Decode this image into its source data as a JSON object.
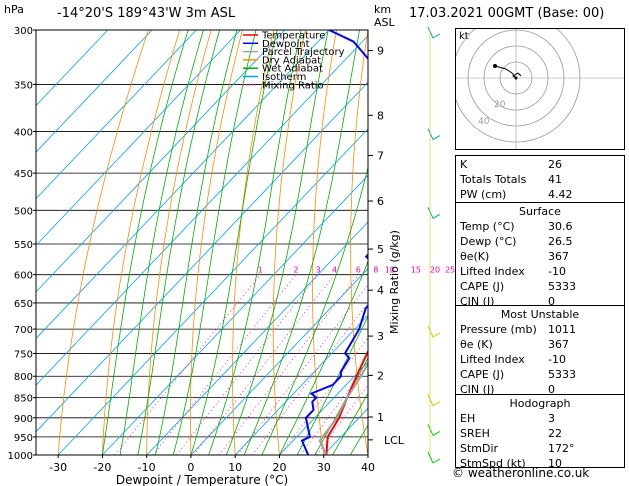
{
  "header": {
    "location": "-14°20'S  189°43'W  3m  ASL",
    "datetime": "17.03.2021  00GMT  (Base: 00)",
    "pressure_unit": "hPa",
    "height_unit_top": "km",
    "height_unit_bottom": "ASL"
  },
  "chart_data": {
    "type": "line",
    "title": "",
    "xlabel": "Dewpoint / Temperature (°C)",
    "ylabel": "",
    "mixing_ratio_axis_label": "Mixing Ratio (g/kg)",
    "xlim": [
      -35,
      40
    ],
    "ylim": [
      1000,
      300
    ],
    "x_ticks": [
      "-30",
      "-20",
      "-10",
      "0",
      "10",
      "20",
      "30",
      "40"
    ],
    "pressure_levels": [
      300,
      350,
      400,
      450,
      500,
      550,
      600,
      650,
      700,
      750,
      800,
      850,
      900,
      950,
      1000
    ],
    "height_ticks": [
      {
        "label": "9",
        "p": 318
      },
      {
        "label": "8",
        "p": 382
      },
      {
        "label": "7",
        "p": 428
      },
      {
        "label": "6",
        "p": 487
      },
      {
        "label": "5",
        "p": 558
      },
      {
        "label": "4",
        "p": 627
      },
      {
        "label": "3",
        "p": 714
      },
      {
        "label": "2",
        "p": 798
      },
      {
        "label": "1",
        "p": 898
      },
      {
        "label": "LCL",
        "p": 958
      }
    ],
    "mixing_ratio_labels": [
      "1",
      "2",
      "3",
      "4",
      "6",
      "8",
      "10",
      "15",
      "20",
      "25"
    ],
    "legend": [
      "Temperature",
      "Dewpoint",
      "Parcel Trajectory",
      "Dry Adiabat",
      "Wet Adiabat",
      "Isotherm",
      "Mixing Ratio"
    ],
    "legend_position": "top-left",
    "colors": {
      "temperature": "#ff0000",
      "dewpoint": "#0000ff",
      "parcel": "#a0a0a0",
      "dry_adiabat": "#ff8c00",
      "wet_adiabat": "#00b000",
      "isotherm": "#00a0ff",
      "mixing_ratio": "#ff00aa"
    },
    "series": [
      {
        "name": "Temperature",
        "points": [
          [
            30.6,
            1000
          ],
          [
            27,
            950
          ],
          [
            25.5,
            900
          ],
          [
            23,
            850
          ],
          [
            20.5,
            800
          ],
          [
            18,
            750
          ],
          [
            15.5,
            700
          ],
          [
            12,
            650
          ],
          [
            8,
            600
          ],
          [
            4,
            550
          ],
          [
            0,
            500
          ],
          [
            -5,
            450
          ],
          [
            -10,
            400
          ],
          [
            -17,
            350
          ],
          [
            -26,
            300
          ]
        ]
      },
      {
        "name": "Dewpoint",
        "points": [
          [
            26.5,
            1000
          ],
          [
            22,
            960
          ],
          [
            23,
            950
          ],
          [
            18,
            900
          ],
          [
            18,
            880
          ],
          [
            16,
            860
          ],
          [
            16,
            850
          ],
          [
            14,
            840
          ],
          [
            17,
            820
          ],
          [
            17,
            800
          ],
          [
            16,
            790
          ],
          [
            15,
            760
          ],
          [
            13,
            750
          ],
          [
            11,
            700
          ],
          [
            8,
            660
          ],
          [
            8,
            640
          ],
          [
            5,
            600
          ],
          [
            -3,
            570
          ],
          [
            -3,
            550
          ],
          [
            -6,
            530
          ],
          [
            -12,
            500
          ],
          [
            -16,
            450
          ],
          [
            -21,
            430
          ],
          [
            -24,
            400
          ],
          [
            -29,
            380
          ],
          [
            -33,
            350
          ],
          [
            -43,
            330
          ],
          [
            -52,
            310
          ],
          [
            -60,
            300
          ]
        ]
      },
      {
        "name": "Parcel Trajectory",
        "points": [
          [
            30.6,
            1000
          ],
          [
            26,
            960
          ],
          [
            25,
            900
          ],
          [
            23,
            850
          ],
          [
            21.5,
            800
          ],
          [
            19.5,
            750
          ],
          [
            17,
            700
          ],
          [
            14.5,
            650
          ],
          [
            11.5,
            600
          ],
          [
            8,
            550
          ],
          [
            4,
            500
          ],
          [
            -1,
            450
          ],
          [
            -6.5,
            400
          ],
          [
            -13.5,
            350
          ],
          [
            -22,
            300
          ]
        ]
      }
    ]
  },
  "hodograph": {
    "label": "kt",
    "ring_labels": [
      "20",
      "40"
    ]
  },
  "indices": {
    "top": [
      {
        "label": "K",
        "value": "26"
      },
      {
        "label": "Totals Totals",
        "value": "41"
      },
      {
        "label": "PW (cm)",
        "value": "4.42"
      }
    ],
    "surface": {
      "title": "Surface",
      "rows": [
        {
          "label": "Temp (°C)",
          "value": "30.6"
        },
        {
          "label": "Dewp (°C)",
          "value": "26.5"
        },
        {
          "label": "θe(K)",
          "value": "367"
        },
        {
          "label": "Lifted Index",
          "value": "-10"
        },
        {
          "label": "CAPE (J)",
          "value": "5333"
        },
        {
          "label": "CIN (J)",
          "value": "0"
        }
      ]
    },
    "most_unstable": {
      "title": "Most Unstable",
      "rows": [
        {
          "label": "Pressure (mb)",
          "value": "1011"
        },
        {
          "label": "θe (K)",
          "value": "367"
        },
        {
          "label": "Lifted Index",
          "value": "-10"
        },
        {
          "label": "CAPE (J)",
          "value": "5333"
        },
        {
          "label": "CIN (J)",
          "value": "0"
        }
      ]
    },
    "hodograph_box": {
      "title": "Hodograph",
      "rows": [
        {
          "label": "EH",
          "value": "3"
        },
        {
          "label": "SREH",
          "value": "22"
        },
        {
          "label": "StmDir",
          "value": "172°"
        },
        {
          "label": "StmSpd (kt)",
          "value": "10"
        }
      ]
    }
  },
  "footer": "© weatheronline.co.uk"
}
